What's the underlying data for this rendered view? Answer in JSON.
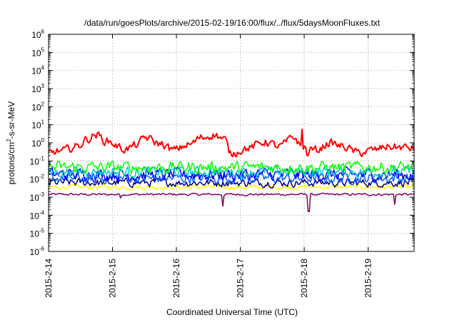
{
  "chart_data": {
    "type": "line",
    "title": "/data/run/goesPlots/archive/2015-02-19/16:00/flux/../flux/5daysMoonFluxes.txt",
    "xlabel": "Coordinated Universal Time (UTC)",
    "ylabel": {
      "pre": "protons/cm",
      "sup": "2",
      "post": "-s-sr-MeV"
    },
    "yscale": "log",
    "ylim_exp": [
      -6,
      6
    ],
    "xlim_days": [
      0,
      5.72
    ],
    "x_ticks": [
      "2015-2-14",
      "2015-2-15",
      "2015-2-16",
      "2015-2-17",
      "2015-2-18",
      "2015-2-19"
    ],
    "y_ticks": [
      {
        "base": "10",
        "exp": "6"
      },
      {
        "base": "10",
        "exp": "5"
      },
      {
        "base": "10",
        "exp": "4"
      },
      {
        "base": "10",
        "exp": "3"
      },
      {
        "base": "10",
        "exp": "2"
      },
      {
        "base": "10",
        "exp": "1"
      },
      {
        "base": "10",
        "exp": "0"
      },
      {
        "base": "10",
        "exp": "-1"
      },
      {
        "base": "10",
        "exp": "-2"
      },
      {
        "base": "10",
        "exp": "-3"
      },
      {
        "base": "10",
        "exp": "-4"
      },
      {
        "base": "10",
        "exp": "-5"
      },
      {
        "base": "10",
        "exp": "-6"
      }
    ],
    "grid": true,
    "series": [
      {
        "color": "#ff0000",
        "width": 2.0,
        "base_exp": -0.25,
        "noise": 0.35,
        "knots": [
          [
            0,
            -0.55
          ],
          [
            0.2,
            -0.45
          ],
          [
            0.45,
            -0.2
          ],
          [
            0.6,
            0.2
          ],
          [
            0.75,
            0.45
          ],
          [
            0.9,
            0.1
          ],
          [
            1.2,
            -0.35
          ],
          [
            1.4,
            -0.1
          ],
          [
            1.5,
            0.3
          ],
          [
            1.75,
            -0.05
          ],
          [
            1.95,
            -0.4
          ],
          [
            2.2,
            -0.1
          ],
          [
            2.4,
            0.3
          ],
          [
            2.6,
            0.45
          ],
          [
            2.75,
            0.2
          ],
          [
            2.85,
            -0.6
          ],
          [
            3.1,
            -0.3
          ],
          [
            3.4,
            0.05
          ],
          [
            3.6,
            -0.2
          ],
          [
            3.85,
            0.3
          ],
          [
            3.95,
            -0.2
          ],
          [
            4.2,
            -0.4
          ],
          [
            4.4,
            0.0
          ],
          [
            4.6,
            -0.2
          ],
          [
            4.85,
            -0.55
          ],
          [
            5.1,
            -0.4
          ],
          [
            5.3,
            -0.2
          ],
          [
            5.5,
            -0.25
          ],
          [
            5.72,
            -0.3
          ]
        ],
        "spikes": [
          [
            3.97,
            0.75
          ],
          [
            4.05,
            -0.7
          ]
        ]
      },
      {
        "color": "#00ff00",
        "width": 1.5,
        "base_exp": -1.35,
        "noise": 0.5,
        "knots": []
      },
      {
        "color": "#00c8c8",
        "width": 1.5,
        "base_exp": -1.6,
        "noise": 0.45,
        "knots": []
      },
      {
        "color": "#0000ff",
        "width": 1.5,
        "base_exp": -1.75,
        "noise": 0.55,
        "knots": []
      },
      {
        "color": "#0060ff",
        "width": 1.5,
        "base_exp": -1.95,
        "noise": 0.45,
        "knots": []
      },
      {
        "color": "#000080",
        "width": 1.5,
        "base_exp": -2.2,
        "noise": 0.35,
        "knots": []
      },
      {
        "color": "#ffff00",
        "width": 1.5,
        "base_exp": -2.45,
        "noise": 0.2,
        "knots": []
      },
      {
        "color": "#800060",
        "width": 1.5,
        "base_exp": -2.85,
        "noise": 0.1,
        "knots": [],
        "spikes": [
          [
            2.73,
            -3.5
          ],
          [
            4.07,
            -3.8
          ],
          [
            5.42,
            -3.4
          ],
          [
            1.12,
            -3.05
          ]
        ]
      }
    ]
  }
}
